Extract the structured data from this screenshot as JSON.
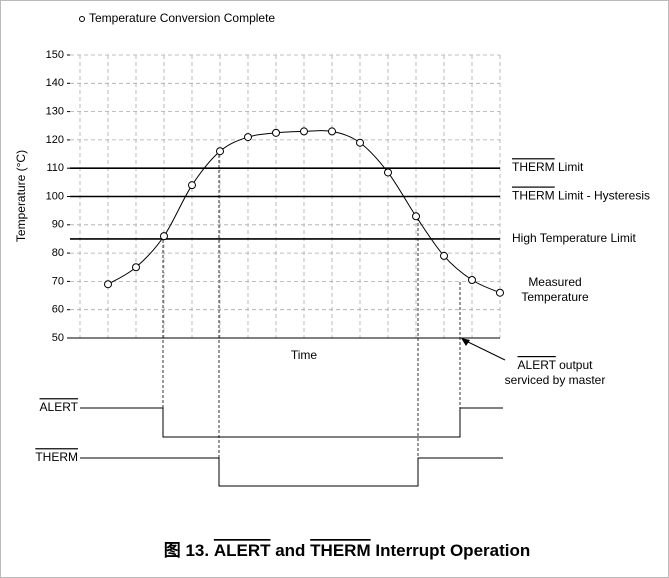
{
  "legend": "Temperature Conversion Complete",
  "chart_data": {
    "type": "line",
    "ylabel": "Temperature (°C)",
    "xlabel": "Time",
    "ylim": [
      50,
      150
    ],
    "yticks": [
      50,
      60,
      70,
      80,
      90,
      100,
      110,
      120,
      130,
      140,
      150
    ],
    "grid": true,
    "categories": [
      null,
      null,
      null,
      null,
      null,
      null,
      null,
      null,
      null,
      null,
      null,
      null,
      null,
      null,
      null
    ],
    "series": [
      {
        "name": "Measured Temperature",
        "color": "#000000",
        "values": [
          69,
          75,
          86,
          104,
          116,
          121,
          122.5,
          123,
          123,
          119,
          108.5,
          93,
          79,
          70.5,
          66
        ]
      }
    ],
    "limits": [
      {
        "overline": "THERM",
        "text": " Limit",
        "value": 110
      },
      {
        "overline": "THERM",
        "text": " Limit - Hysteresis",
        "value": 100
      },
      {
        "overline": "",
        "text": "High Temperature Limit",
        "value": 85
      }
    ]
  },
  "annotation": {
    "overline": "ALERT",
    "text": " output",
    "line2": "serviced by master"
  },
  "signals": [
    "ALERT",
    "THERM"
  ],
  "title": {
    "prefix": "图 13. ",
    "a": "ALERT",
    "mid": " and ",
    "b": "THERM",
    "suffix": " Interrupt Operation"
  }
}
